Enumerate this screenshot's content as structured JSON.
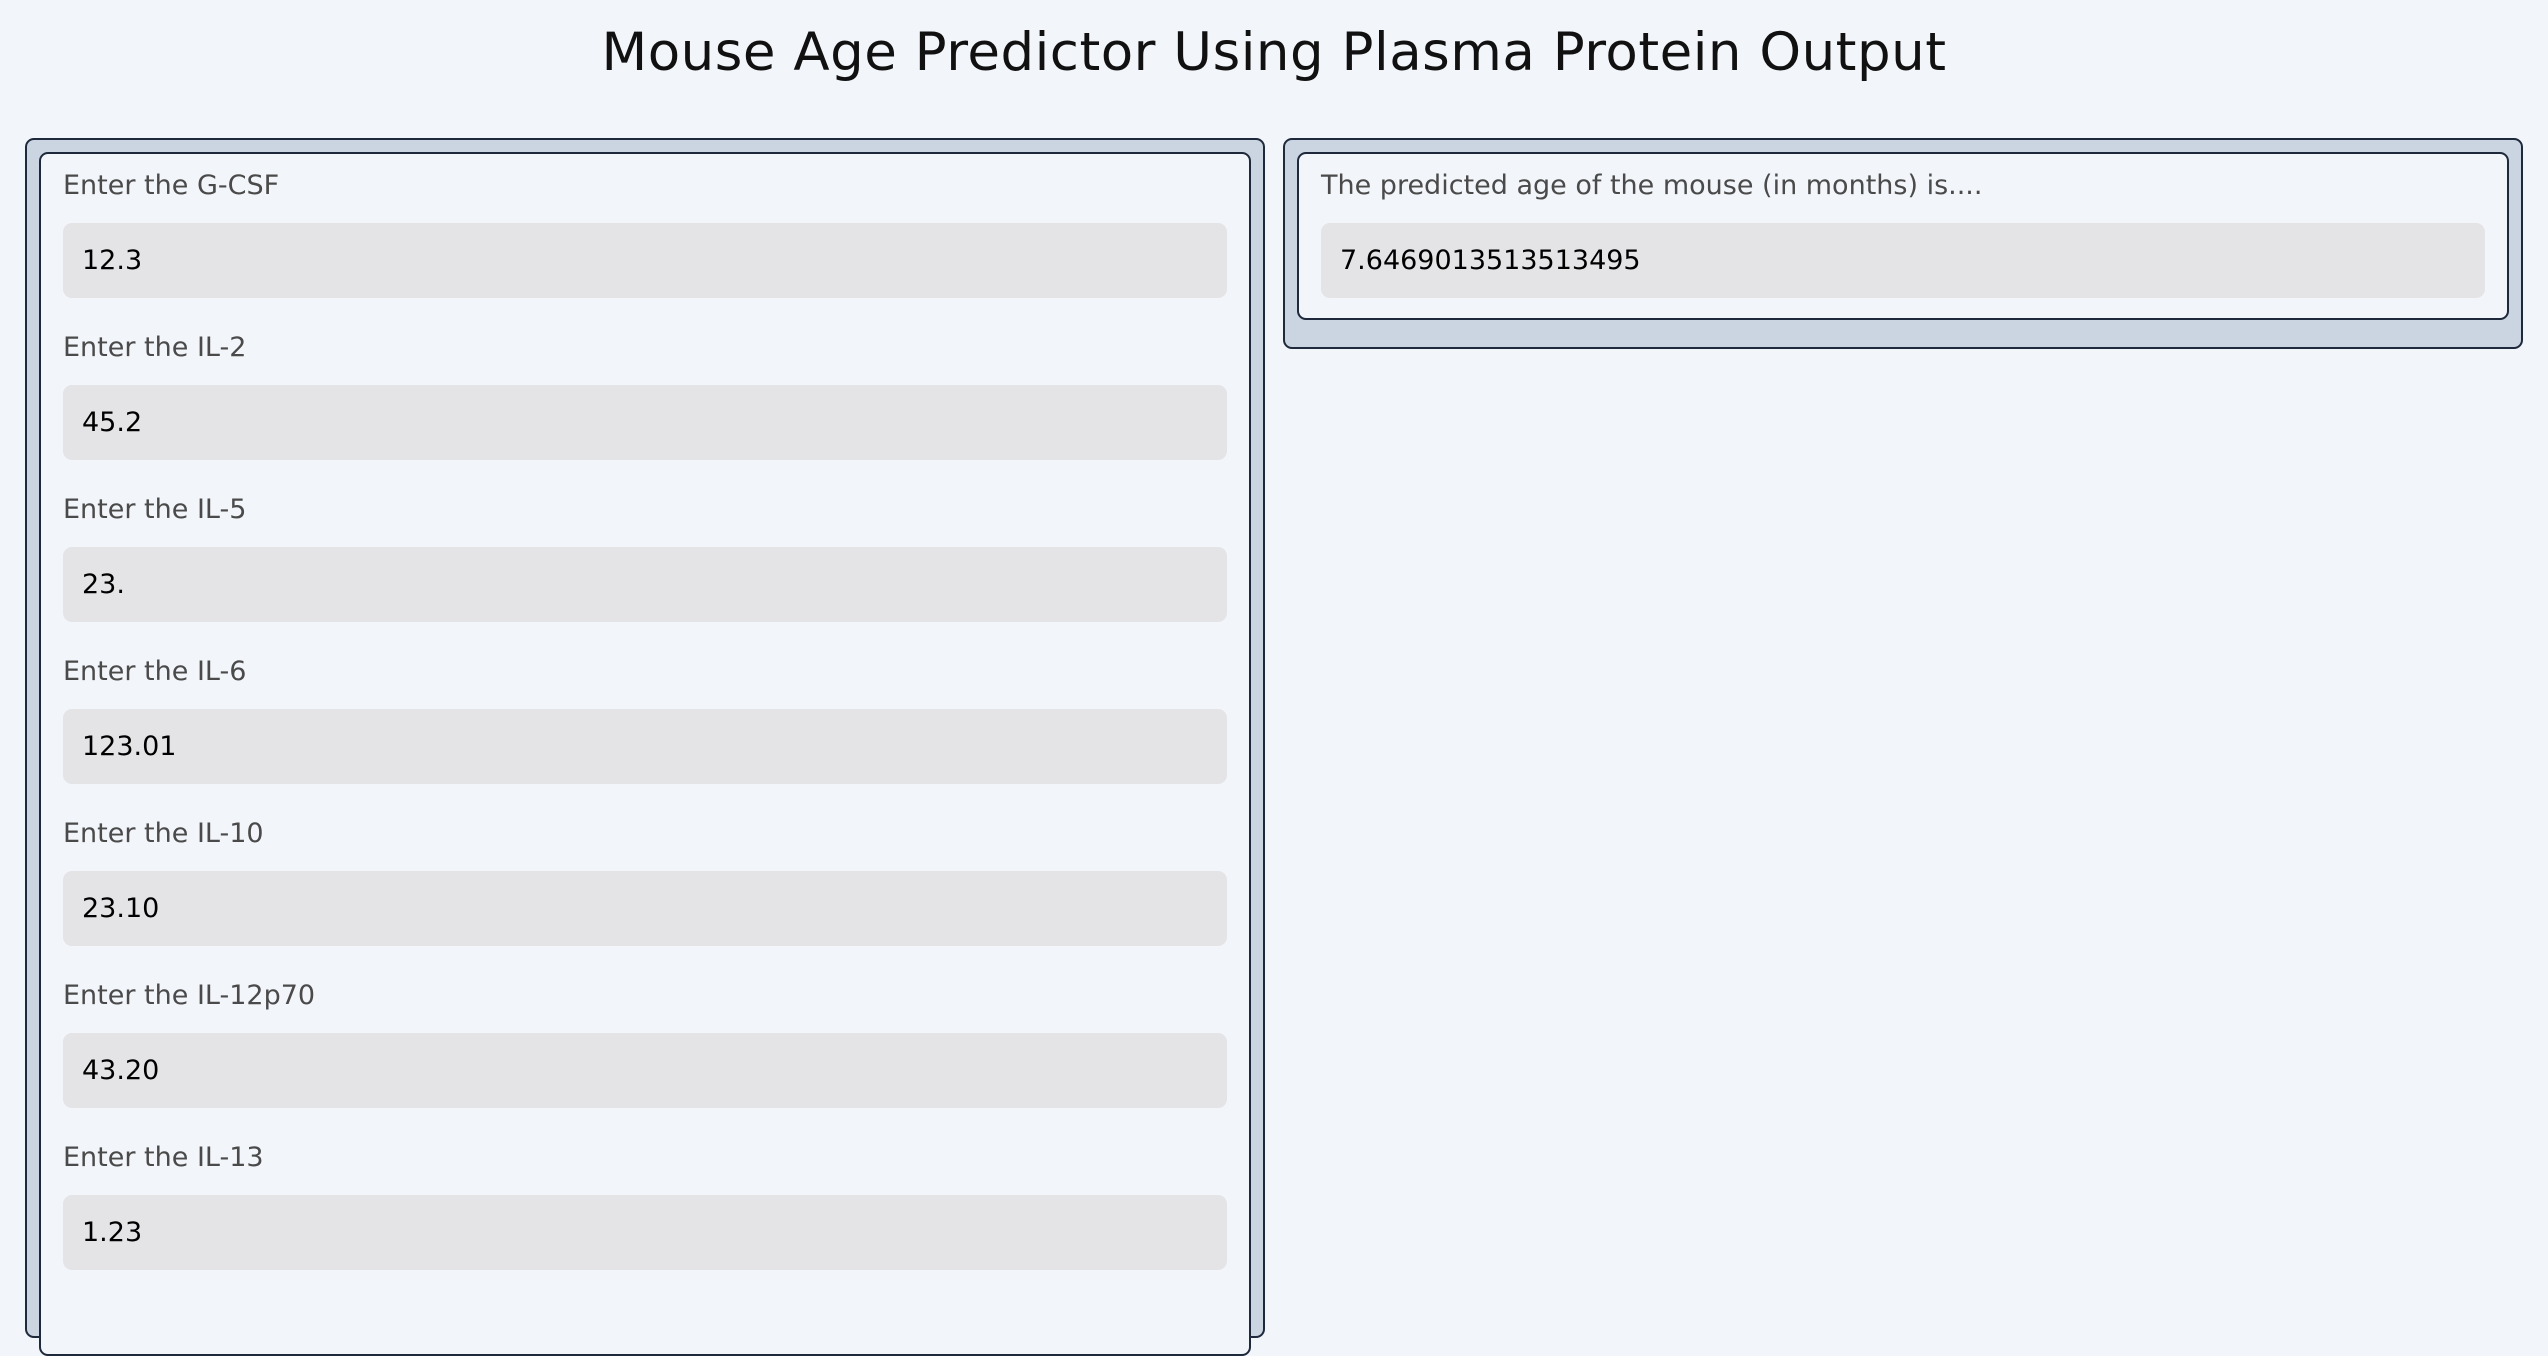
{
  "page": {
    "title": "Mouse Age Predictor Using Plasma Protein Output",
    "background": "#f2f5fa",
    "panel_fill": "#cbd5e1",
    "panel_border": "#1e293b",
    "input_fill": "#e4e4e7"
  },
  "inputs": [
    {
      "label": "Enter the G-CSF",
      "value": "12.3"
    },
    {
      "label": "Enter the IL-2",
      "value": "45.2"
    },
    {
      "label": "Enter the IL-5",
      "value": "23."
    },
    {
      "label": "Enter the IL-6",
      "value": "123.01"
    },
    {
      "label": "Enter the IL-10",
      "value": "23.10"
    },
    {
      "label": "Enter the IL-12p70",
      "value": "43.20"
    },
    {
      "label": "Enter the IL-13",
      "value": "1.23"
    }
  ],
  "output": {
    "label": "The predicted age of the mouse (in months) is....",
    "value": "7.6469013513513495"
  }
}
